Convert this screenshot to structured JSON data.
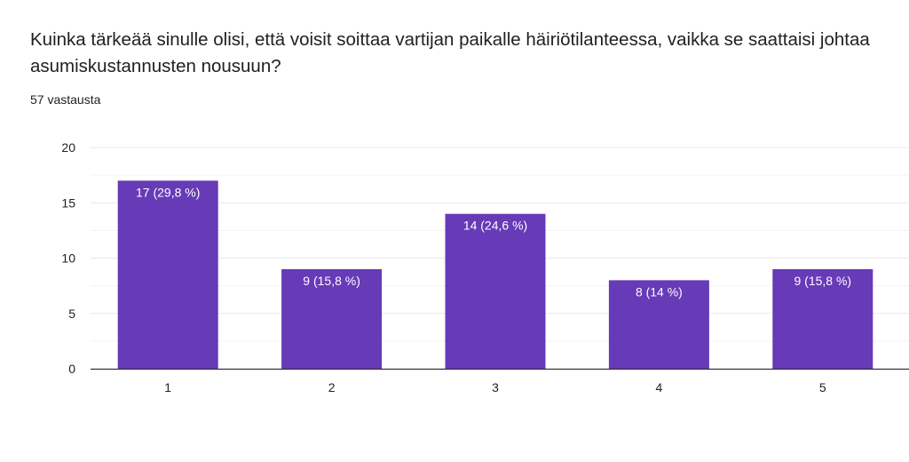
{
  "question": {
    "title": "Kuinka tärkeää sinulle olisi, että voisit soittaa vartijan paikalle häiriötilanteessa, vaikka se saattaisi johtaa asumiskustannusten nousuun?",
    "response_count": "57 vastausta"
  },
  "colors": {
    "bar": "#673ab7",
    "grid": "#e8e8e8",
    "axis": "#333333",
    "label_inside": "#ffffff"
  },
  "chart_data": {
    "type": "bar",
    "title": "",
    "xlabel": "",
    "ylabel": "",
    "categories": [
      "1",
      "2",
      "3",
      "4",
      "5"
    ],
    "values": [
      17,
      9,
      14,
      8,
      9
    ],
    "data_labels": [
      "17 (29,8 %)",
      "9 (15,8 %)",
      "14 (24,6 %)",
      "8 (14 %)",
      "9 (15,8 %)"
    ],
    "ylim": [
      0,
      20
    ],
    "y_ticks": [
      0,
      5,
      10,
      15,
      20
    ],
    "grid": true,
    "legend": "none"
  }
}
